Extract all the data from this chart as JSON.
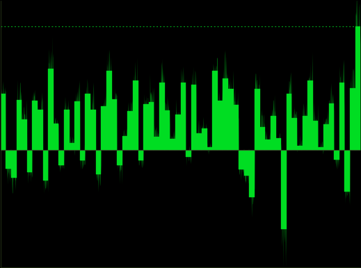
{
  "background_color": "#000000",
  "line_color": "#00dd22",
  "fill_color": "#00dd22",
  "zero_line_color": "#3a4a2a",
  "dashed_line_color": "#00dd22",
  "ylim": [
    -55,
    70
  ],
  "dashed_line_y": 58,
  "annual_returns": [
    26.4,
    -8.6,
    -13.1,
    23.5,
    14.3,
    -10.5,
    23.1,
    18.9,
    -14.3,
    38.1,
    12.4,
    -7.1,
    18.9,
    3.2,
    22.8,
    -4.8,
    26.5,
    19.0,
    -11.4,
    20.4,
    37.2,
    23.8,
    -7.2,
    6.6,
    18.1,
    32.4,
    -4.9,
    21.4,
    22.5,
    6.3,
    31.7,
    18.7,
    5.2,
    16.6,
    31.7,
    -3.1,
    30.5,
    7.7,
    10.0,
    1.3,
    37.2,
    23.0,
    33.4,
    28.6,
    21.0,
    -9.1,
    -11.9,
    -22.1,
    28.7,
    10.9,
    4.9,
    15.8,
    5.5,
    -37.0,
    26.5,
    15.1,
    2.1,
    16.0,
    32.4,
    13.7,
    1.4,
    12.0,
    21.8,
    -4.4,
    31.5,
    -19.4,
    28.9,
    58.0
  ],
  "n_per_year": 12
}
